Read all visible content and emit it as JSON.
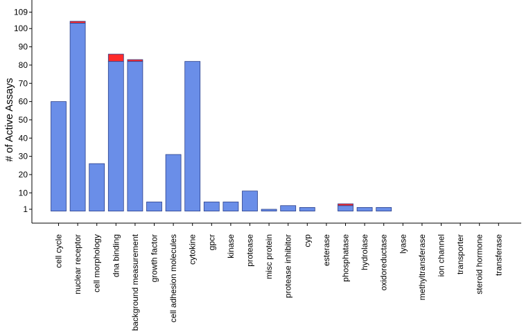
{
  "chart_data": {
    "type": "bar",
    "stacked": true,
    "ylabel": "# of Active Assays",
    "xlabel": "",
    "title": "",
    "ylim": [
      0,
      109
    ],
    "yticks": [
      1,
      10,
      20,
      30,
      40,
      50,
      60,
      70,
      80,
      90,
      100,
      109
    ],
    "grid": false,
    "legend": "none",
    "categories": [
      "cell cycle",
      "nuclear receptor",
      "cell morphology",
      "dna binding",
      "background measurement",
      "growth factor",
      "cell adhesion molecules",
      "cytokine",
      "gpcr",
      "kinase",
      "protease",
      "misc protein",
      "protease inhibitor",
      "cyp",
      "esterase",
      "phosphatase",
      "hydrolase",
      "oxidoreductase",
      "lyase",
      "methyltransferase",
      "ion channel",
      "transporter",
      "steroid hormone",
      "transferase"
    ],
    "series": [
      {
        "color": "#6a8ee8",
        "values": [
          60,
          103,
          26,
          82,
          82,
          5,
          31,
          82,
          5,
          5,
          11,
          1,
          3,
          2,
          0,
          3,
          2,
          2,
          0,
          0,
          0,
          0,
          0,
          0
        ]
      },
      {
        "color": "#ff2b2b",
        "values": [
          0,
          1,
          0,
          4,
          1,
          0,
          0,
          0,
          0,
          0,
          0,
          0,
          0,
          0,
          0,
          1,
          0,
          0,
          0,
          0,
          0,
          0,
          0,
          0
        ]
      }
    ],
    "colors": {
      "bar_primary": "#6a8ee8",
      "bar_secondary": "#ff2b2b",
      "bar_stroke": "#2a3f8a",
      "axis": "#000000"
    }
  }
}
